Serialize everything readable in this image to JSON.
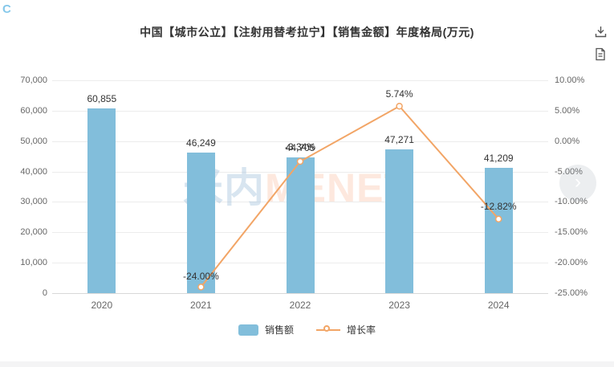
{
  "page": {
    "corner_mark": "C"
  },
  "header": {
    "title": "中国【城市公立】【注射用替考拉宁】【销售金额】年度格局(万元)"
  },
  "toolbar": {
    "icons": [
      "download-icon",
      "report-icon"
    ]
  },
  "watermark": {
    "part1": "米内",
    "part2": "MENET"
  },
  "nav": {
    "next_arrow": "›"
  },
  "colors": {
    "bar": "#82bedb",
    "line": "#f2a566",
    "grid": "#ececec",
    "axis_text": "#666666",
    "label_text": "#333333",
    "title_text": "#333333"
  },
  "chart_data": {
    "type": "bar",
    "title": "中国【城市公立】【注射用替考拉宁】【销售金额】年度格局(万元)",
    "categories": [
      "2020",
      "2021",
      "2022",
      "2023",
      "2024"
    ],
    "series": [
      {
        "name": "销售额",
        "type": "bar",
        "axis": "left",
        "values": [
          60855,
          46249,
          44705,
          47271,
          41209
        ],
        "labels": [
          "60,855",
          "46,249",
          "44,705",
          "47,271",
          "41,209"
        ]
      },
      {
        "name": "增长率",
        "type": "line",
        "axis": "right",
        "values": [
          null,
          -24.0,
          -3.34,
          5.74,
          -12.82
        ],
        "labels": [
          null,
          "-24.00%",
          "-3.34%",
          "5.74%",
          "-12.82%"
        ]
      }
    ],
    "left_axis": {
      "min": 0,
      "max": 70000,
      "tick_step": 10000,
      "tick_labels": [
        "70,000",
        "60,000",
        "50,000",
        "40,000",
        "30,000",
        "20,000",
        "10,000",
        "0"
      ]
    },
    "right_axis": {
      "min": -25,
      "max": 10,
      "tick_step": 5,
      "tick_labels": [
        "10.00%",
        "5.00%",
        "0.00%",
        "-5.00%",
        "-10.00%",
        "-15.00%",
        "-20.00%",
        "-25.00%"
      ]
    },
    "grid": true,
    "legend_position": "bottom",
    "legend": [
      {
        "label": "销售额",
        "type": "bar"
      },
      {
        "label": "增长率",
        "type": "line"
      }
    ]
  }
}
